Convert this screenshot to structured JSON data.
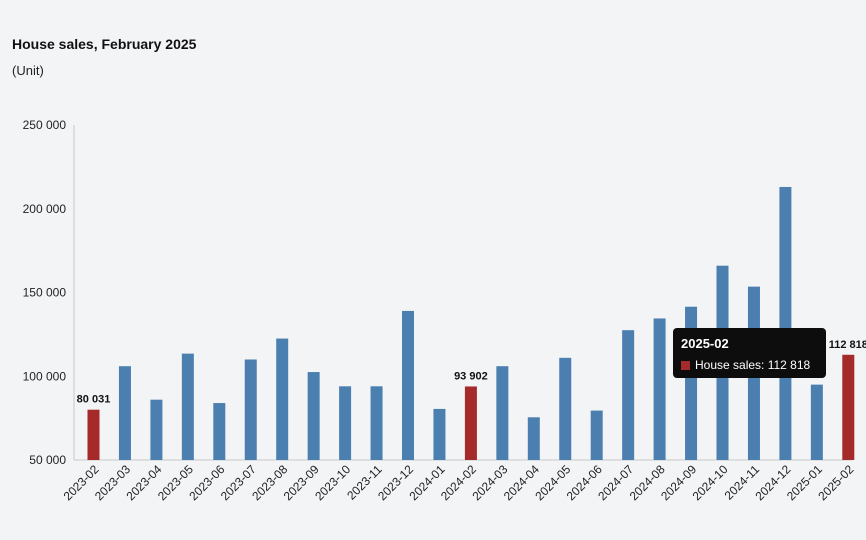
{
  "chart": {
    "title": "House sales, February 2025",
    "unit": "(Unit)"
  },
  "chart_data": {
    "type": "bar",
    "title": "House sales, February 2025",
    "subtitle": "(Unit)",
    "categories": [
      "2023-02",
      "2023-03",
      "2023-04",
      "2023-05",
      "2023-06",
      "2023-07",
      "2023-08",
      "2023-09",
      "2023-10",
      "2023-11",
      "2023-12",
      "2024-01",
      "2024-02",
      "2024-03",
      "2024-04",
      "2024-05",
      "2024-06",
      "2024-07",
      "2024-08",
      "2024-09",
      "2024-10",
      "2024-11",
      "2024-12",
      "2025-01",
      "2025-02"
    ],
    "series": [
      {
        "name": "House sales",
        "values": [
          80031,
          106000,
          86000,
          113500,
          84000,
          110000,
          122500,
          102500,
          94000,
          94000,
          139000,
          80500,
          93902,
          106000,
          75500,
          111000,
          79500,
          127500,
          134500,
          141500,
          166000,
          153500,
          213000,
          95000,
          112818
        ],
        "highlighted": [
          0,
          12,
          24
        ],
        "colors": {
          "default": "#4a7fb0",
          "highlight": "#a52a2a"
        }
      }
    ],
    "data_labels": [
      {
        "index": 0,
        "text": "80 031"
      },
      {
        "index": 12,
        "text": "93 902"
      },
      {
        "index": 24,
        "text": "112 818"
      }
    ],
    "y_ticks": [
      "250 000",
      "200 000",
      "150 000",
      "100 000",
      "50 000"
    ],
    "ylim": [
      50000,
      250000
    ],
    "xlabel": "",
    "ylabel": "",
    "grid": false,
    "legend": "none"
  },
  "tooltip": {
    "title": "2025-02",
    "row_label": "House sales: 112 818",
    "swatch_color": "#a52a2a"
  }
}
